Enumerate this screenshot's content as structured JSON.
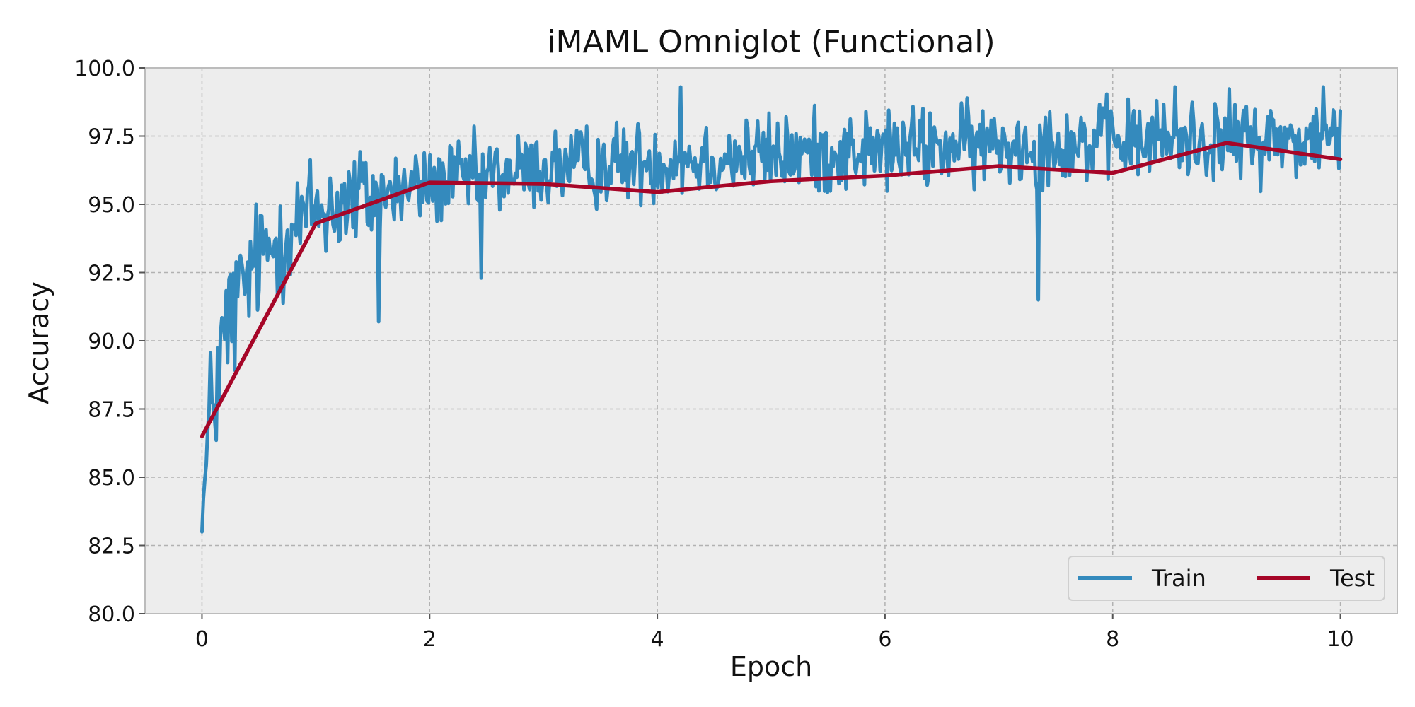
{
  "chart_data": {
    "type": "line",
    "title": "iMAML Omniglot (Functional)",
    "xlabel": "Epoch",
    "ylabel": "Accuracy",
    "xlim": [
      -0.5,
      10.5
    ],
    "ylim": [
      80.0,
      100.0
    ],
    "xticks": [
      0,
      2,
      4,
      6,
      8,
      10
    ],
    "yticks": [
      80.0,
      82.5,
      85.0,
      87.5,
      90.0,
      92.5,
      95.0,
      97.5,
      100.0
    ],
    "ytick_labels": [
      "80.0",
      "82.5",
      "85.0",
      "87.5",
      "90.0",
      "92.5",
      "95.0",
      "97.5",
      "100.0"
    ],
    "grid": true,
    "legend": {
      "placement": "lower-right",
      "columns": 2
    },
    "background": "#ededed",
    "series": [
      {
        "name": "Train",
        "color": "#348abd",
        "noisy": true,
        "points": 800,
        "anchors": [
          [
            0.0,
            83.0
          ],
          [
            0.05,
            86.0
          ],
          [
            0.1,
            88.0
          ],
          [
            0.2,
            90.0
          ],
          [
            0.3,
            91.5
          ],
          [
            0.5,
            93.0
          ],
          [
            0.75,
            94.0
          ],
          [
            1.0,
            94.8
          ],
          [
            1.5,
            95.3
          ],
          [
            2.0,
            95.7
          ],
          [
            2.5,
            96.0
          ],
          [
            3.0,
            96.3
          ],
          [
            4.0,
            96.6
          ],
          [
            5.0,
            96.8
          ],
          [
            6.0,
            97.0
          ],
          [
            7.0,
            97.2
          ],
          [
            8.0,
            97.3
          ],
          [
            9.0,
            97.4
          ],
          [
            10.0,
            97.3
          ]
        ],
        "spikes": [
          [
            1.55,
            90.7
          ],
          [
            2.45,
            92.3
          ],
          [
            7.35,
            91.5
          ],
          [
            4.2,
            99.3
          ],
          [
            9.85,
            99.3
          ],
          [
            8.55,
            99.3
          ]
        ]
      },
      {
        "name": "Test",
        "color": "#a60628",
        "x": [
          0,
          1,
          2,
          3,
          4,
          5,
          6,
          7,
          8,
          9,
          10
        ],
        "values": [
          86.5,
          94.3,
          95.8,
          95.75,
          95.45,
          95.85,
          96.05,
          96.4,
          96.15,
          97.25,
          96.65
        ]
      }
    ]
  }
}
